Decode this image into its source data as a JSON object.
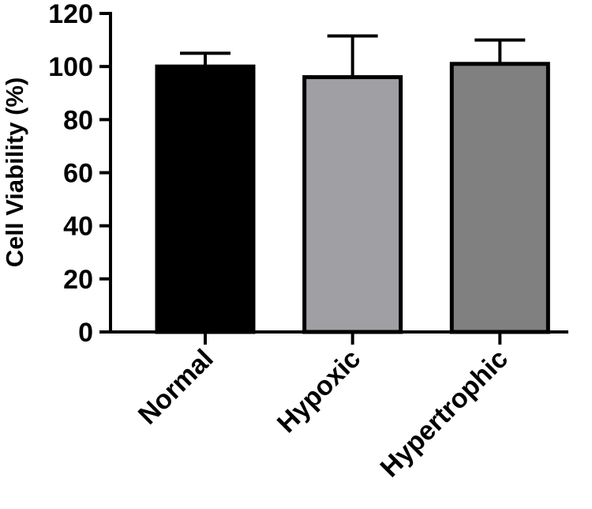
{
  "chart_data": {
    "type": "bar",
    "title": "",
    "xlabel": "",
    "ylabel": "Cell Viability (%)",
    "ylim": [
      0,
      120
    ],
    "yticks": [
      0,
      20,
      40,
      60,
      80,
      100,
      120
    ],
    "grid": false,
    "legend": "none",
    "categories": [
      "Normal",
      "Hypoxic",
      "Hypertrophic"
    ],
    "values": [
      100,
      96,
      101
    ],
    "error_upper": [
      5,
      15.5,
      9
    ],
    "colors": [
      "#000000",
      "#a0a0a4",
      "#808080"
    ]
  }
}
